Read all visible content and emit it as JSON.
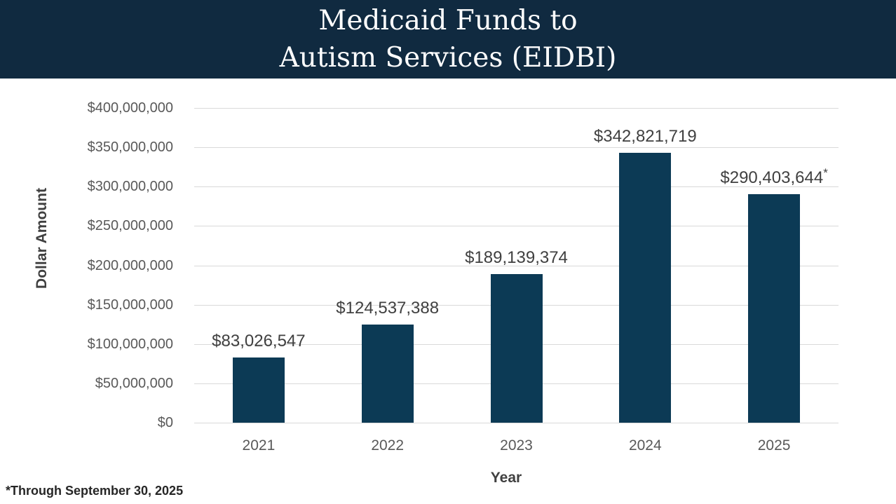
{
  "header": {
    "title_lines": [
      "Medicaid Funds to",
      "Autism Services (EIDBI)"
    ],
    "bg_color": "#102A40",
    "text_color": "#FFFFFF"
  },
  "footnote": "*Through September 30, 2025",
  "chart_data": {
    "type": "bar",
    "title": "Medicaid Funds to Autism Services (EIDBI)",
    "xlabel": "Year",
    "ylabel": "Dollar Amount",
    "categories": [
      "2021",
      "2022",
      "2023",
      "2024",
      "2025"
    ],
    "values": [
      83026547,
      124537388,
      189139374,
      342821719,
      290403644
    ],
    "data_labels": [
      "$83,026,547",
      "$124,537,388",
      "$189,139,374",
      "$342,821,719",
      "$290,403,644"
    ],
    "data_label_markers": [
      "",
      "",
      "",
      "",
      "*"
    ],
    "ylim": [
      0,
      400000000
    ],
    "ytick_interval": 50000000,
    "ytick_labels": [
      "$0",
      "$50,000,000",
      "$100,000,000",
      "$150,000,000",
      "$200,000,000",
      "$250,000,000",
      "$300,000,000",
      "$350,000,000",
      "$400,000,000"
    ],
    "grid": true,
    "legend": "none",
    "bar_color": "#0C3A55",
    "grid_color": "#D9D9D9",
    "tick_label_color": "#595959",
    "data_label_color": "#404040",
    "axis_title_color": "#404040"
  }
}
